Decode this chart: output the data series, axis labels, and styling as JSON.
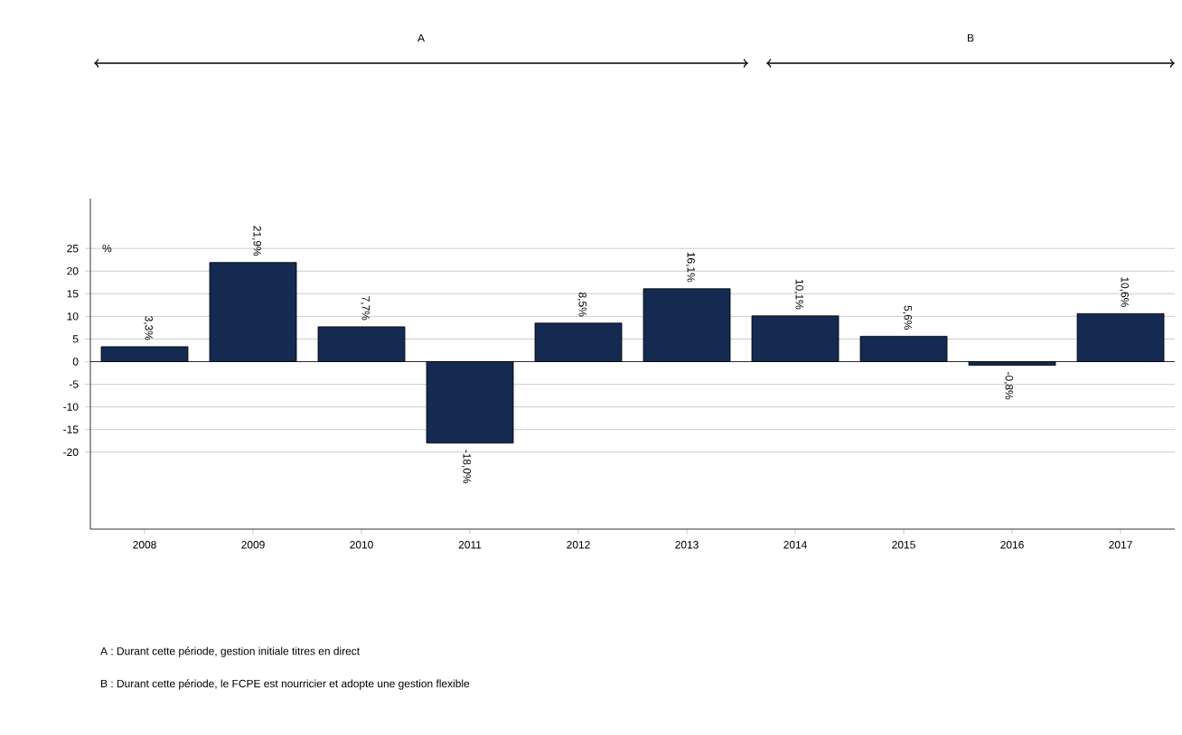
{
  "chart_data": {
    "type": "bar",
    "categories": [
      "2008",
      "2009",
      "2010",
      "2011",
      "2012",
      "2013",
      "2014",
      "2015",
      "2016",
      "2017"
    ],
    "values": [
      3.3,
      21.9,
      7.7,
      -18.0,
      8.5,
      16.1,
      10.1,
      5.6,
      -0.8,
      10.6
    ],
    "value_labels": [
      "3,3%",
      "21,9%",
      "7,7%",
      "-18,0%",
      "8,5%",
      "16,1%",
      "10,1%",
      "5,6%",
      "-0,8%",
      "10,6%"
    ],
    "color": "#142a50",
    "ylabel": "%",
    "ylim": [
      -37,
      36
    ],
    "yticks": [
      -20,
      -15,
      -10,
      -5,
      0,
      5,
      10,
      15,
      20,
      25
    ],
    "grid": "y",
    "annotations": [
      "A",
      "B",
      "A : Durant cette période, gestion initiale titres en direct",
      "B : Durant cette période, le FCPE est nourricier et adopte une gestion flexible"
    ]
  }
}
